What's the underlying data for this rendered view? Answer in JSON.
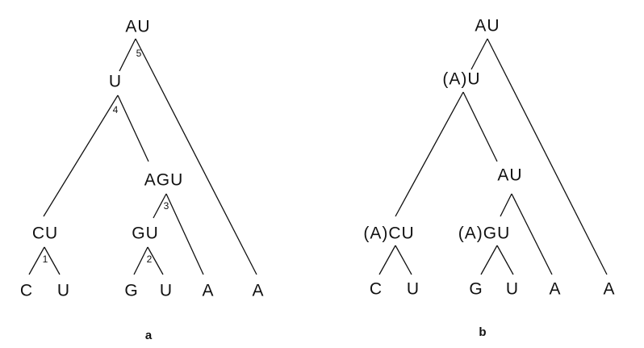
{
  "tree_a": {
    "caption": "a",
    "nodes": {
      "root": "AU",
      "u": "U",
      "cu": "CU",
      "agu": "AGU",
      "gu": "GU",
      "c": "C",
      "u_leaf": "U",
      "g": "G",
      "u_leaf2": "U",
      "a1": "A",
      "a2": "A"
    },
    "steps": {
      "s1": "1",
      "s2": "2",
      "s3": "3",
      "s4": "4",
      "s5": "5"
    }
  },
  "tree_b": {
    "caption": "b",
    "nodes": {
      "root": "AU",
      "au_paren": "(A)U",
      "cu": "(A)CU",
      "au": "AU",
      "gu": "(A)GU",
      "c": "C",
      "u_leaf": "U",
      "g": "G",
      "u_leaf2": "U",
      "a1": "A",
      "a2": "A"
    }
  }
}
